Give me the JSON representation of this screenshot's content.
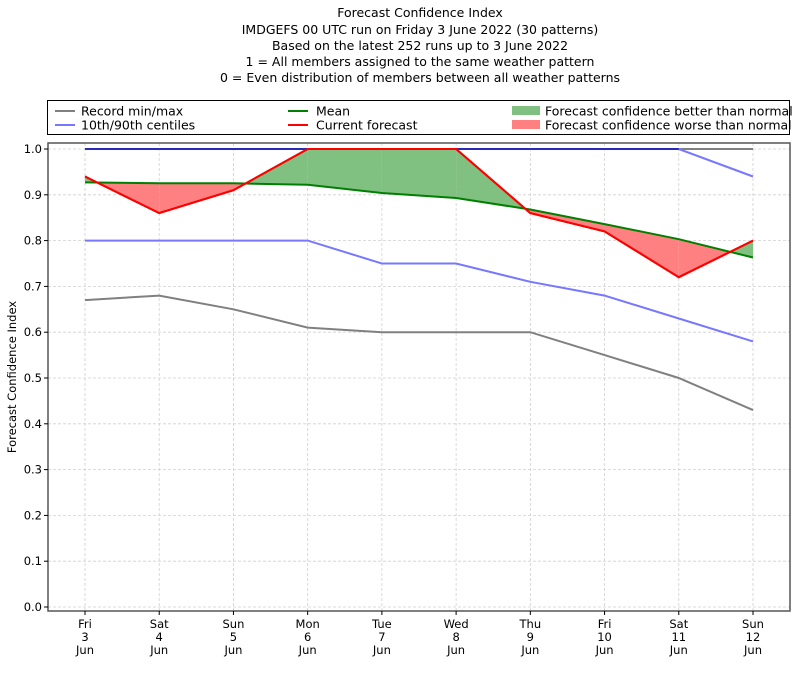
{
  "chart_data": {
    "type": "line",
    "title_lines": [
      "Forecast Confidence Index",
      "IMDGEFS 00 UTC run on Friday 3 June 2022 (30 patterns)",
      "Based on the latest 252 runs up to 3 June 2022",
      "1 = All members assigned to the same weather pattern",
      "0 = Even distribution of members between all weather patterns"
    ],
    "xlabel": "",
    "ylabel": "Forecast Confidence Index",
    "ylim": [
      0.0,
      1.0
    ],
    "yticks": [
      "0.0",
      "0.1",
      "0.2",
      "0.3",
      "0.4",
      "0.5",
      "0.6",
      "0.7",
      "0.8",
      "0.9",
      "1.0"
    ],
    "ytick_values": [
      0.0,
      0.1,
      0.2,
      0.3,
      0.4,
      0.5,
      0.6,
      0.7,
      0.8,
      0.9,
      1.0
    ],
    "categories": [
      {
        "day": "Fri",
        "date": "3",
        "month": "Jun"
      },
      {
        "day": "Sat",
        "date": "4",
        "month": "Jun"
      },
      {
        "day": "Sun",
        "date": "5",
        "month": "Jun"
      },
      {
        "day": "Mon",
        "date": "6",
        "month": "Jun"
      },
      {
        "day": "Tue",
        "date": "7",
        "month": "Jun"
      },
      {
        "day": "Wed",
        "date": "8",
        "month": "Jun"
      },
      {
        "day": "Thu",
        "date": "9",
        "month": "Jun"
      },
      {
        "day": "Fri",
        "date": "10",
        "month": "Jun"
      },
      {
        "day": "Sat",
        "date": "11",
        "month": "Jun"
      },
      {
        "day": "Sun",
        "date": "12",
        "month": "Jun"
      }
    ],
    "grid": true,
    "legend_position": "top",
    "series": [
      {
        "name": "Record min",
        "legend": "Record min/max",
        "color": "#808080",
        "values": [
          0.67,
          0.68,
          0.65,
          0.61,
          0.6,
          0.6,
          0.6,
          0.55,
          0.5,
          0.43
        ]
      },
      {
        "name": "Record max",
        "legend": "Record min/max",
        "color": "#808080",
        "values": [
          1.0,
          1.0,
          1.0,
          1.0,
          1.0,
          1.0,
          1.0,
          1.0,
          1.0,
          1.0
        ]
      },
      {
        "name": "10th centile",
        "legend": "10th/90th centiles",
        "color": "#7777ff",
        "values": [
          0.8,
          0.8,
          0.8,
          0.8,
          0.75,
          0.75,
          0.71,
          0.68,
          0.63,
          0.58
        ]
      },
      {
        "name": "90th centile",
        "legend": "10th/90th centiles",
        "color": "#7777ff",
        "values": [
          1.0,
          1.0,
          1.0,
          1.0,
          1.0,
          1.0,
          1.0,
          1.0,
          1.0,
          0.94
        ]
      },
      {
        "name": "Mean",
        "legend": "Mean",
        "color": "#008000",
        "values": [
          0.927,
          0.925,
          0.925,
          0.922,
          0.904,
          0.893,
          0.868,
          0.836,
          0.803,
          0.763
        ]
      },
      {
        "name": "Current forecast",
        "legend": "Current forecast",
        "color": "#ff0000",
        "values": [
          0.94,
          0.86,
          0.91,
          1.0,
          1.0,
          1.0,
          0.86,
          0.82,
          0.72,
          0.8
        ]
      }
    ],
    "fills": [
      {
        "name": "Forecast confidence better than normal",
        "color": "#80c080"
      },
      {
        "name": "Forecast confidence worse than normal",
        "color": "#ff8080"
      }
    ],
    "legend": [
      {
        "label": "Record min/max",
        "kind": "line",
        "color": "#808080"
      },
      {
        "label": "10th/90th centiles",
        "kind": "line",
        "color": "#7777ff"
      },
      {
        "label": "Mean",
        "kind": "line",
        "color": "#008000"
      },
      {
        "label": "Current forecast",
        "kind": "line",
        "color": "#ff0000"
      },
      {
        "label": "Forecast confidence better than normal",
        "kind": "patch",
        "color": "#80c080"
      },
      {
        "label": "Forecast confidence worse than normal",
        "kind": "patch",
        "color": "#ff8080"
      }
    ]
  }
}
